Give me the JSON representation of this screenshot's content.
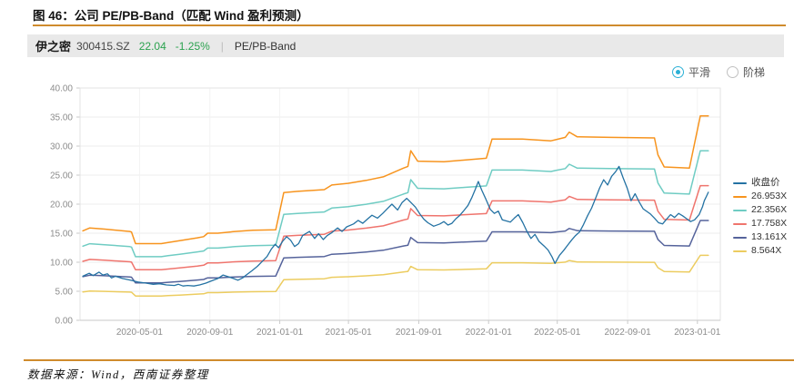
{
  "figure": {
    "title": "图 46：公司 PE/PB-Band（匹配 Wind 盈利预测）",
    "source_note": "数据来源：Wind，西南证券整理"
  },
  "colors": {
    "divider_rule": "#cf8b2d",
    "quote_green": "#2ba24f",
    "radio_accent": "#2bb0d6",
    "grid_line": "#ededed",
    "axis_line": "#c9c9c9"
  },
  "stock_bar": {
    "name": "伊之密",
    "code": "300415.SZ",
    "price": "22.04",
    "change_pct": "-1.25%",
    "separator": "|",
    "view_label": "PE/PB-Band"
  },
  "controls": {
    "options": [
      {
        "label": "平滑",
        "selected": true
      },
      {
        "label": "阶梯",
        "selected": false
      }
    ]
  },
  "chart_data": {
    "type": "line",
    "grid": true,
    "legend_position": "right",
    "ylim": [
      0,
      40
    ],
    "y_ticks": [
      0,
      5,
      10,
      15,
      20,
      25,
      30,
      35,
      40
    ],
    "y_tick_labels": [
      "0.00",
      "5.00",
      "10.00",
      "15.00",
      "20.00",
      "25.00",
      "30.00",
      "35.00",
      "40.00"
    ],
    "x_domain": [
      "2020-01-18",
      "2023-02-10"
    ],
    "x_ticks": [
      "2020-05-01",
      "2020-09-01",
      "2021-01-01",
      "2021-05-01",
      "2021-09-01",
      "2022-01-01",
      "2022-05-01",
      "2022-09-01",
      "2023-01-01"
    ],
    "band_dates": [
      "2020-01-23",
      "2020-02-04",
      "2020-03-01",
      "2020-04-14",
      "2020-04-17",
      "2020-04-24",
      "2020-06-08",
      "2020-06-20",
      "2020-07-10",
      "2020-08-10",
      "2020-08-21",
      "2020-08-28",
      "2020-09-15",
      "2020-10-15",
      "2020-11-15",
      "2020-12-25",
      "2021-01-08",
      "2021-02-01",
      "2021-03-20",
      "2021-04-02",
      "2021-05-01",
      "2021-06-01",
      "2021-07-01",
      "2021-08-05",
      "2021-08-13",
      "2021-08-18",
      "2021-08-30",
      "2021-10-15",
      "2021-11-20",
      "2021-12-28",
      "2022-01-07",
      "2022-03-01",
      "2022-04-20",
      "2022-04-28",
      "2022-05-15",
      "2022-05-22",
      "2022-06-05",
      "2022-08-01",
      "2022-10-18",
      "2022-10-24",
      "2022-11-04",
      "2022-12-18",
      "2023-01-06",
      "2023-01-20"
    ],
    "series": [
      {
        "name": "收盘价",
        "color": "#2472a3",
        "width": 1.3,
        "points": [
          [
            "2020-01-23",
            7.6
          ],
          [
            "2020-02-03",
            8.1
          ],
          [
            "2020-02-10",
            7.7
          ],
          [
            "2020-02-20",
            8.3
          ],
          [
            "2020-02-27",
            7.8
          ],
          [
            "2020-03-06",
            8.0
          ],
          [
            "2020-03-13",
            7.3
          ],
          [
            "2020-03-20",
            7.6
          ],
          [
            "2020-04-01",
            7.2
          ],
          [
            "2020-04-15",
            6.9
          ],
          [
            "2020-04-28",
            6.6
          ],
          [
            "2020-05-12",
            6.4
          ],
          [
            "2020-05-25",
            6.2
          ],
          [
            "2020-06-05",
            6.3
          ],
          [
            "2020-06-17",
            6.1
          ],
          [
            "2020-07-01",
            6.0
          ],
          [
            "2020-07-08",
            6.2
          ],
          [
            "2020-07-16",
            5.9
          ],
          [
            "2020-07-24",
            6.0
          ],
          [
            "2020-08-04",
            5.9
          ],
          [
            "2020-08-14",
            6.1
          ],
          [
            "2020-08-25",
            6.4
          ],
          [
            "2020-09-04",
            6.8
          ],
          [
            "2020-09-15",
            7.2
          ],
          [
            "2020-09-24",
            7.8
          ],
          [
            "2020-09-30",
            7.6
          ],
          [
            "2020-10-12",
            7.2
          ],
          [
            "2020-10-20",
            6.9
          ],
          [
            "2020-10-28",
            7.3
          ],
          [
            "2020-11-05",
            7.9
          ],
          [
            "2020-11-13",
            8.5
          ],
          [
            "2020-11-23",
            9.3
          ],
          [
            "2020-12-02",
            10.2
          ],
          [
            "2020-12-10",
            11.0
          ],
          [
            "2020-12-17",
            12.2
          ],
          [
            "2020-12-24",
            13.1
          ],
          [
            "2020-12-30",
            12.5
          ],
          [
            "2021-01-06",
            13.6
          ],
          [
            "2021-01-13",
            14.4
          ],
          [
            "2021-01-20",
            13.8
          ],
          [
            "2021-01-27",
            12.7
          ],
          [
            "2021-02-03",
            13.2
          ],
          [
            "2021-02-10",
            14.6
          ],
          [
            "2021-02-22",
            15.3
          ],
          [
            "2021-03-03",
            14.1
          ],
          [
            "2021-03-10",
            14.9
          ],
          [
            "2021-03-18",
            13.9
          ],
          [
            "2021-03-25",
            14.6
          ],
          [
            "2021-04-02",
            15.1
          ],
          [
            "2021-04-12",
            15.9
          ],
          [
            "2021-04-20",
            15.3
          ],
          [
            "2021-04-28",
            16.1
          ],
          [
            "2021-05-10",
            16.6
          ],
          [
            "2021-05-18",
            17.2
          ],
          [
            "2021-05-26",
            16.7
          ],
          [
            "2021-06-03",
            17.4
          ],
          [
            "2021-06-11",
            18.1
          ],
          [
            "2021-06-21",
            17.6
          ],
          [
            "2021-06-30",
            18.4
          ],
          [
            "2021-07-08",
            19.2
          ],
          [
            "2021-07-16",
            20.0
          ],
          [
            "2021-07-26",
            19.0
          ],
          [
            "2021-08-03",
            20.3
          ],
          [
            "2021-08-11",
            21.0
          ],
          [
            "2021-08-19",
            20.2
          ],
          [
            "2021-08-26",
            19.5
          ],
          [
            "2021-09-03",
            18.3
          ],
          [
            "2021-09-10",
            17.4
          ],
          [
            "2021-09-17",
            16.8
          ],
          [
            "2021-09-27",
            16.2
          ],
          [
            "2021-10-08",
            16.6
          ],
          [
            "2021-10-15",
            17.0
          ],
          [
            "2021-10-22",
            16.4
          ],
          [
            "2021-10-29",
            16.7
          ],
          [
            "2021-11-05",
            17.5
          ],
          [
            "2021-11-12",
            18.1
          ],
          [
            "2021-11-19",
            18.9
          ],
          [
            "2021-11-26",
            19.8
          ],
          [
            "2021-12-03",
            21.2
          ],
          [
            "2021-12-09",
            22.6
          ],
          [
            "2021-12-14",
            23.9
          ],
          [
            "2021-12-20",
            22.4
          ],
          [
            "2021-12-27",
            20.9
          ],
          [
            "2022-01-04",
            19.1
          ],
          [
            "2022-01-11",
            18.4
          ],
          [
            "2022-01-18",
            18.8
          ],
          [
            "2022-01-25",
            17.3
          ],
          [
            "2022-02-08",
            16.9
          ],
          [
            "2022-02-15",
            17.6
          ],
          [
            "2022-02-22",
            18.2
          ],
          [
            "2022-03-02",
            16.8
          ],
          [
            "2022-03-09",
            15.3
          ],
          [
            "2022-03-16",
            14.1
          ],
          [
            "2022-03-23",
            14.8
          ],
          [
            "2022-03-30",
            13.6
          ],
          [
            "2022-04-08",
            12.8
          ],
          [
            "2022-04-15",
            12.1
          ],
          [
            "2022-04-22",
            10.9
          ],
          [
            "2022-04-27",
            9.8
          ],
          [
            "2022-05-05",
            11.2
          ],
          [
            "2022-05-12",
            12.0
          ],
          [
            "2022-05-19",
            12.9
          ],
          [
            "2022-05-26",
            13.8
          ],
          [
            "2022-06-02",
            14.6
          ],
          [
            "2022-06-09",
            15.2
          ],
          [
            "2022-06-16",
            16.5
          ],
          [
            "2022-06-23",
            18.0
          ],
          [
            "2022-06-30",
            19.3
          ],
          [
            "2022-07-07",
            21.0
          ],
          [
            "2022-07-14",
            22.8
          ],
          [
            "2022-07-21",
            24.2
          ],
          [
            "2022-07-28",
            23.3
          ],
          [
            "2022-08-04",
            24.8
          ],
          [
            "2022-08-11",
            25.6
          ],
          [
            "2022-08-17",
            26.5
          ],
          [
            "2022-08-24",
            24.6
          ],
          [
            "2022-08-31",
            22.8
          ],
          [
            "2022-09-07",
            20.6
          ],
          [
            "2022-09-14",
            21.8
          ],
          [
            "2022-09-21",
            20.4
          ],
          [
            "2022-09-28",
            19.2
          ],
          [
            "2022-10-11",
            18.3
          ],
          [
            "2022-10-18",
            17.6
          ],
          [
            "2022-10-25",
            16.8
          ],
          [
            "2022-11-01",
            16.6
          ],
          [
            "2022-11-08",
            17.4
          ],
          [
            "2022-11-15",
            18.2
          ],
          [
            "2022-11-22",
            17.7
          ],
          [
            "2022-11-29",
            18.4
          ],
          [
            "2022-12-06",
            18.0
          ],
          [
            "2022-12-13",
            17.5
          ],
          [
            "2022-12-20",
            17.0
          ],
          [
            "2022-12-27",
            17.3
          ],
          [
            "2023-01-04",
            18.2
          ],
          [
            "2023-01-10",
            19.6
          ],
          [
            "2023-01-13",
            20.6
          ],
          [
            "2023-01-17",
            21.4
          ],
          [
            "2023-01-20",
            22.04
          ]
        ]
      },
      {
        "name": "26.953X",
        "color": "#f7941e",
        "width": 1.5,
        "values": [
          15.4,
          15.9,
          15.7,
          15.3,
          15.2,
          13.2,
          13.2,
          13.4,
          13.7,
          14.2,
          14.4,
          15.0,
          15.0,
          15.3,
          15.5,
          15.6,
          22.0,
          22.2,
          22.5,
          23.3,
          23.6,
          24.1,
          24.7,
          26.2,
          26.5,
          29.2,
          27.4,
          27.3,
          27.6,
          27.9,
          31.2,
          31.2,
          30.9,
          31.1,
          31.5,
          32.4,
          31.6,
          31.5,
          31.4,
          28.5,
          26.4,
          26.2,
          35.2,
          35.2
        ]
      },
      {
        "name": "22.356X",
        "color": "#6fccc3",
        "width": 1.5,
        "values": [
          12.77,
          13.19,
          13.02,
          12.69,
          12.61,
          10.95,
          10.95,
          11.12,
          11.36,
          11.78,
          11.94,
          12.44,
          12.44,
          12.69,
          12.86,
          12.94,
          18.25,
          18.41,
          18.66,
          19.33,
          19.57,
          19.99,
          20.49,
          21.73,
          21.98,
          24.22,
          22.73,
          22.64,
          22.89,
          23.14,
          25.88,
          25.88,
          25.63,
          25.79,
          26.13,
          26.87,
          26.21,
          26.13,
          26.04,
          23.64,
          21.9,
          21.73,
          29.2,
          29.2
        ]
      },
      {
        "name": "17.758X",
        "color": "#ef746d",
        "width": 1.5,
        "values": [
          10.15,
          10.48,
          10.34,
          10.08,
          10.01,
          8.7,
          8.7,
          8.83,
          9.03,
          9.35,
          9.49,
          9.88,
          9.88,
          10.08,
          10.21,
          10.28,
          14.49,
          14.63,
          14.82,
          15.35,
          15.55,
          15.88,
          16.27,
          17.26,
          17.46,
          19.24,
          18.05,
          17.99,
          18.18,
          18.38,
          20.56,
          20.56,
          20.36,
          20.49,
          20.75,
          21.35,
          20.82,
          20.75,
          20.69,
          18.78,
          17.39,
          17.26,
          23.19,
          23.19
        ]
      },
      {
        "name": "13.161X",
        "color": "#55639b",
        "width": 1.5,
        "values": [
          7.52,
          7.76,
          7.67,
          7.47,
          7.42,
          6.44,
          6.44,
          6.54,
          6.69,
          6.93,
          7.03,
          7.32,
          7.32,
          7.47,
          7.57,
          7.62,
          10.74,
          10.84,
          10.99,
          11.38,
          11.52,
          11.77,
          12.06,
          12.79,
          12.94,
          14.26,
          13.38,
          13.33,
          13.48,
          13.62,
          15.24,
          15.24,
          15.09,
          15.19,
          15.38,
          15.82,
          15.43,
          15.38,
          15.33,
          13.92,
          12.89,
          12.79,
          17.19,
          17.19
        ]
      },
      {
        "name": "8.564X",
        "color": "#eccc5f",
        "width": 1.5,
        "values": [
          4.89,
          5.05,
          4.99,
          4.86,
          4.83,
          4.19,
          4.19,
          4.26,
          4.35,
          4.51,
          4.57,
          4.77,
          4.77,
          4.86,
          4.92,
          4.96,
          6.99,
          7.05,
          7.15,
          7.4,
          7.5,
          7.66,
          7.85,
          8.32,
          8.42,
          9.28,
          8.71,
          8.67,
          8.77,
          8.86,
          9.91,
          9.91,
          9.82,
          9.88,
          10.01,
          10.29,
          10.04,
          10.01,
          9.98,
          9.06,
          8.39,
          8.32,
          11.18,
          11.18
        ]
      }
    ]
  }
}
